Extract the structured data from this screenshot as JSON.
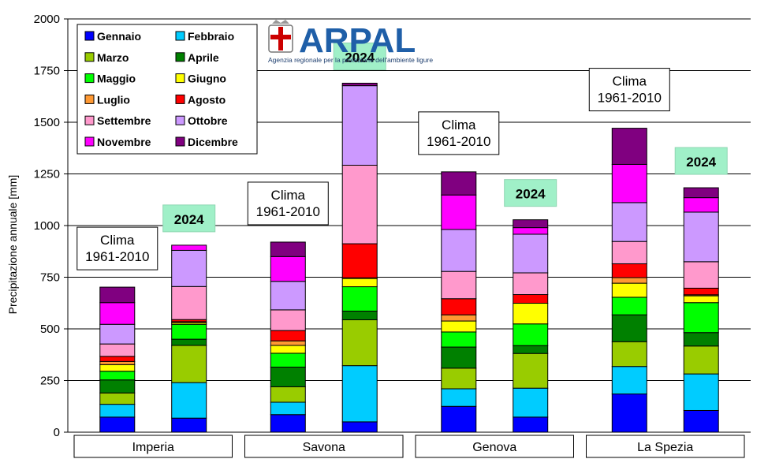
{
  "logo": {
    "name": "ARPAL",
    "subtitle": "Agenzia regionale per la protezione dell'ambiente ligure"
  },
  "chart_data": {
    "type": "bar",
    "stacked": true,
    "ylabel": "Precipitazione annuale [mm]",
    "ylim": [
      0,
      2000
    ],
    "yticks": [
      0,
      250,
      500,
      750,
      1000,
      1250,
      1500,
      1750,
      2000
    ],
    "grid": true,
    "legend_position": "top-left",
    "groups": [
      "Imperia",
      "Savona",
      "Genova",
      "La Spezia"
    ],
    "bars": [
      {
        "group": "Imperia",
        "label": "Clima 1961-2010",
        "label_style": "clima"
      },
      {
        "group": "Imperia",
        "label": "2024",
        "label_style": "year"
      },
      {
        "group": "Savona",
        "label": "Clima 1961-2010",
        "label_style": "clima"
      },
      {
        "group": "Savona",
        "label": "2024",
        "label_style": "year"
      },
      {
        "group": "Genova",
        "label": "Clima 1961-2010",
        "label_style": "clima"
      },
      {
        "group": "Genova",
        "label": "2024",
        "label_style": "year"
      },
      {
        "group": "La Spezia",
        "label": "Clima 1961-2010",
        "label_style": "clima"
      },
      {
        "group": "La Spezia",
        "label": "2024",
        "label_style": "year"
      }
    ],
    "series": [
      {
        "name": "Gennaio",
        "color": "#0000ff",
        "values": [
          73,
          68,
          85,
          50,
          125,
          73,
          185,
          105
        ]
      },
      {
        "name": "Febbraio",
        "color": "#00ccff",
        "values": [
          62,
          172,
          60,
          272,
          85,
          140,
          133,
          177
        ]
      },
      {
        "name": "Marzo",
        "color": "#99cc00",
        "values": [
          55,
          180,
          75,
          222,
          100,
          168,
          120,
          135
        ]
      },
      {
        "name": "Aprile",
        "color": "#008000",
        "values": [
          63,
          30,
          95,
          42,
          102,
          38,
          130,
          65
        ]
      },
      {
        "name": "Maggio",
        "color": "#00ff00",
        "values": [
          42,
          72,
          67,
          118,
          73,
          105,
          85,
          145
        ]
      },
      {
        "name": "Giugno",
        "color": "#ffff00",
        "values": [
          32,
          8,
          38,
          40,
          53,
          100,
          68,
          33
        ]
      },
      {
        "name": "Luglio",
        "color": "#ff9933",
        "values": [
          15,
          5,
          22,
          3,
          30,
          0,
          27,
          5
        ]
      },
      {
        "name": "Agosto",
        "color": "#ff0000",
        "values": [
          25,
          10,
          50,
          165,
          78,
          42,
          67,
          32
        ]
      },
      {
        "name": "Settembre",
        "color": "#ff99cc",
        "values": [
          60,
          160,
          100,
          380,
          132,
          105,
          108,
          128
        ]
      },
      {
        "name": "Ottobre",
        "color": "#cc99ff",
        "values": [
          95,
          175,
          138,
          385,
          203,
          187,
          188,
          240
        ]
      },
      {
        "name": "Novembre",
        "color": "#ff00ff",
        "values": [
          105,
          25,
          120,
          0,
          167,
          32,
          185,
          70
        ]
      },
      {
        "name": "Dicembre",
        "color": "#800080",
        "values": [
          75,
          0,
          70,
          12,
          112,
          38,
          175,
          48
        ]
      }
    ]
  }
}
